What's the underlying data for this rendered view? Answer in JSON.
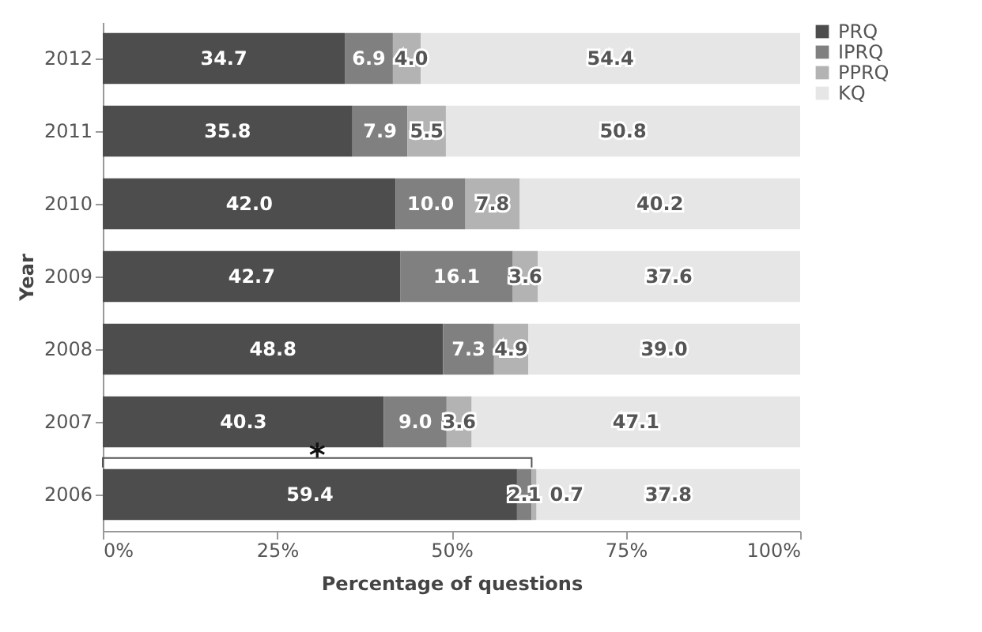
{
  "chart_data": {
    "type": "bar",
    "orientation": "horizontal",
    "stacked": true,
    "xlabel": "Percentage of questions",
    "ylabel": "Year",
    "categories": [
      "2012",
      "2011",
      "2010",
      "2009",
      "2008",
      "2007",
      "2006"
    ],
    "series": [
      {
        "name": "PRQ",
        "color": "#4d4d4d",
        "values": [
          34.7,
          35.8,
          42.0,
          42.7,
          48.8,
          40.3,
          59.4
        ],
        "value_labels": [
          "34.7",
          "35.8",
          "42.0",
          "42.7",
          "48.8",
          "40.3",
          "59.4"
        ]
      },
      {
        "name": "IPRQ",
        "color": "#808080",
        "values": [
          6.9,
          7.9,
          10.0,
          16.1,
          7.3,
          9.0,
          2.1
        ],
        "value_labels": [
          "6.9",
          "7.9",
          "10.0",
          "16.1",
          "7.3",
          "9.0",
          "2.1"
        ]
      },
      {
        "name": "PPRQ",
        "color": "#b3b3b3",
        "values": [
          4.0,
          5.5,
          7.8,
          3.6,
          4.9,
          3.6,
          0.7
        ],
        "value_labels": [
          "4.0",
          "5.5",
          "7.8",
          "3.6",
          "4.9",
          "3.6",
          "0.7"
        ]
      },
      {
        "name": "KQ",
        "color": "#e6e6e6",
        "values": [
          54.4,
          50.8,
          40.2,
          37.6,
          39.0,
          47.1,
          37.8
        ],
        "value_labels": [
          "54.4",
          "50.8",
          "40.2",
          "37.6",
          "39.0",
          "47.1",
          "37.8"
        ]
      }
    ],
    "xlim": [
      0,
      100
    ],
    "xticks": [
      {
        "value": 0,
        "label": "0%"
      },
      {
        "value": 25,
        "label": "25%"
      },
      {
        "value": 50,
        "label": "50%"
      },
      {
        "value": 75,
        "label": "75%"
      },
      {
        "value": 100,
        "label": "100%"
      }
    ],
    "annotations": [
      {
        "text": "*",
        "x": 30.75,
        "y": "2006"
      }
    ],
    "grid": false,
    "legend": "top right"
  }
}
